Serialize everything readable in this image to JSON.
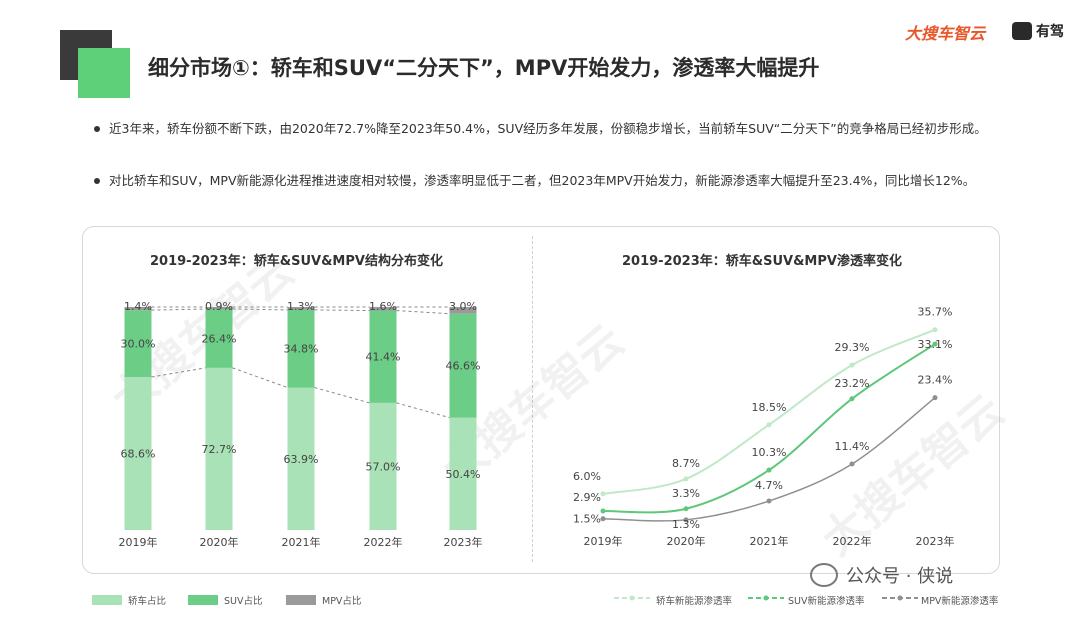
{
  "header": {
    "title": "细分市场①：轿车和SUV“二分天下”，MPV开始发力，渗透率大幅提升",
    "brand": "大搜车智云",
    "brand2": "有驾"
  },
  "bullets": [
    "近3年来，轿车份额不断下跌，由2020年72.7%降至2023年50.4%，SUV经历多年发展，份额稳步增长，当前轿车SUV“二分天下”的竞争格局已经初步形成。",
    "对比轿车和SUV，MPV新能源化进程推进速度相对较慢，渗透率明显低于二者，但2023年MPV开始发力，新能源渗透率大幅提升至23.4%，同比增长12%。"
  ],
  "watermark": "大搜车智云",
  "footer": {
    "wechat": "公众号 · 侠说"
  },
  "colors": {
    "sedan": "#a8e2b6",
    "suv": "#6ccd86",
    "mpv": "#9a9a9a",
    "sedan_line": "#bfe9c9",
    "suv_line": "#5ec77a",
    "mpv_line": "#8f8f8f"
  },
  "chart_data": [
    {
      "type": "bar",
      "stacked": true,
      "normalized": true,
      "title": "2019-2023年：轿车&SUV&MPV结构分布变化",
      "categories": [
        "2019年",
        "2020年",
        "2021年",
        "2022年",
        "2023年"
      ],
      "series": [
        {
          "name": "轿车占比",
          "values": [
            68.6,
            72.7,
            63.9,
            57.0,
            50.4
          ],
          "labels": [
            "68.6%",
            "72.7%",
            "63.9%",
            "57.0%",
            "50.4%"
          ]
        },
        {
          "name": "SUV占比",
          "values": [
            30.0,
            26.4,
            34.8,
            41.4,
            46.6
          ],
          "labels": [
            "30.0%",
            "26.4%",
            "34.8%",
            "41.4%",
            "46.6%"
          ]
        },
        {
          "name": "MPV占比",
          "values": [
            1.4,
            0.9,
            1.3,
            1.6,
            3.0
          ],
          "labels": [
            "1.4%",
            "0.9%",
            "1.3%",
            "1.6%",
            "3.0%"
          ]
        }
      ],
      "ylim": [
        0,
        100
      ],
      "legend": "bottom-left"
    },
    {
      "type": "line",
      "title": "2019-2023年：轿车&SUV&MPV渗透率变化",
      "categories": [
        "2019年",
        "2020年",
        "2021年",
        "2022年",
        "2023年"
      ],
      "series": [
        {
          "name": "轿车新能源渗透率",
          "values": [
            6.0,
            8.7,
            18.5,
            29.3,
            35.7
          ],
          "labels": [
            "6.0%",
            "8.7%",
            "18.5%",
            "29.3%",
            "35.7%"
          ]
        },
        {
          "name": "SUV新能源渗透率",
          "values": [
            2.9,
            3.3,
            10.3,
            23.2,
            33.1
          ],
          "labels": [
            "2.9%",
            "3.3%",
            "10.3%",
            "23.2%",
            "33.1%"
          ]
        },
        {
          "name": "MPV新能源渗透率",
          "values": [
            1.5,
            1.3,
            4.7,
            11.4,
            23.4
          ],
          "labels": [
            "1.5%",
            "1.3%",
            "4.7%",
            "11.4%",
            "23.4%"
          ]
        }
      ],
      "ylim": [
        0,
        38
      ],
      "legend": "bottom-right"
    }
  ]
}
